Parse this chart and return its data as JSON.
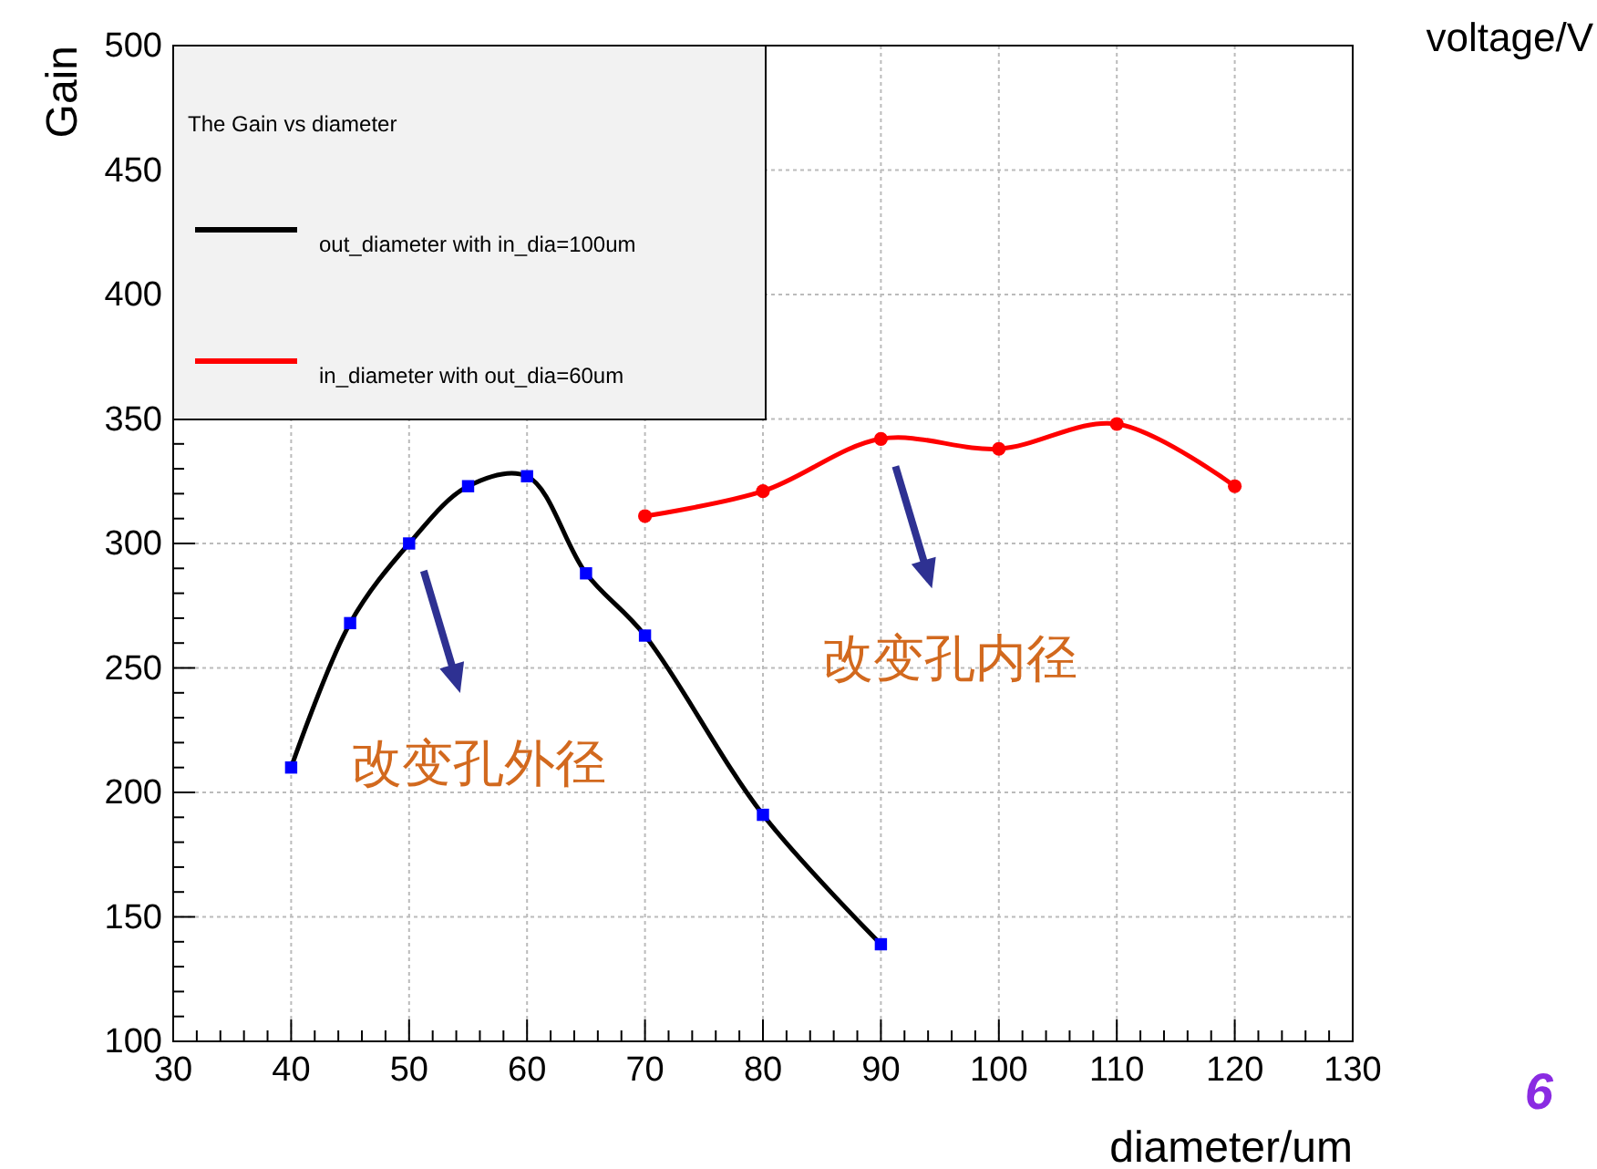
{
  "chart_data": {
    "type": "line",
    "legend_title": "The Gain vs diameter",
    "xlabel": "diameter/um",
    "ylabel": "Gain",
    "xlim": [
      30,
      130
    ],
    "xticks": [
      30,
      40,
      50,
      60,
      70,
      80,
      90,
      100,
      110,
      120,
      130
    ],
    "ylim": [
      100,
      500
    ],
    "yticks": [
      100,
      150,
      200,
      250,
      300,
      350,
      400,
      450,
      500
    ],
    "grid": true,
    "legend": "top left",
    "series": [
      {
        "name": "out_diameter with in_dia=100um",
        "color": "#000000",
        "marker": "square",
        "x": [
          40,
          45,
          50,
          55,
          60,
          65,
          70,
          80,
          90
        ],
        "values": [
          210,
          268,
          300,
          323,
          327,
          288,
          263,
          191,
          139
        ]
      },
      {
        "name": "in_diameter with out_dia=60um",
        "color": "#ff0000",
        "marker": "circle",
        "x": [
          70,
          80,
          90,
          100,
          110,
          120
        ],
        "values": [
          311,
          321,
          342,
          338,
          348,
          323
        ]
      }
    ],
    "annotations": [
      "voltage/V",
      "6",
      "改变孔外径",
      "改变孔内径"
    ]
  }
}
